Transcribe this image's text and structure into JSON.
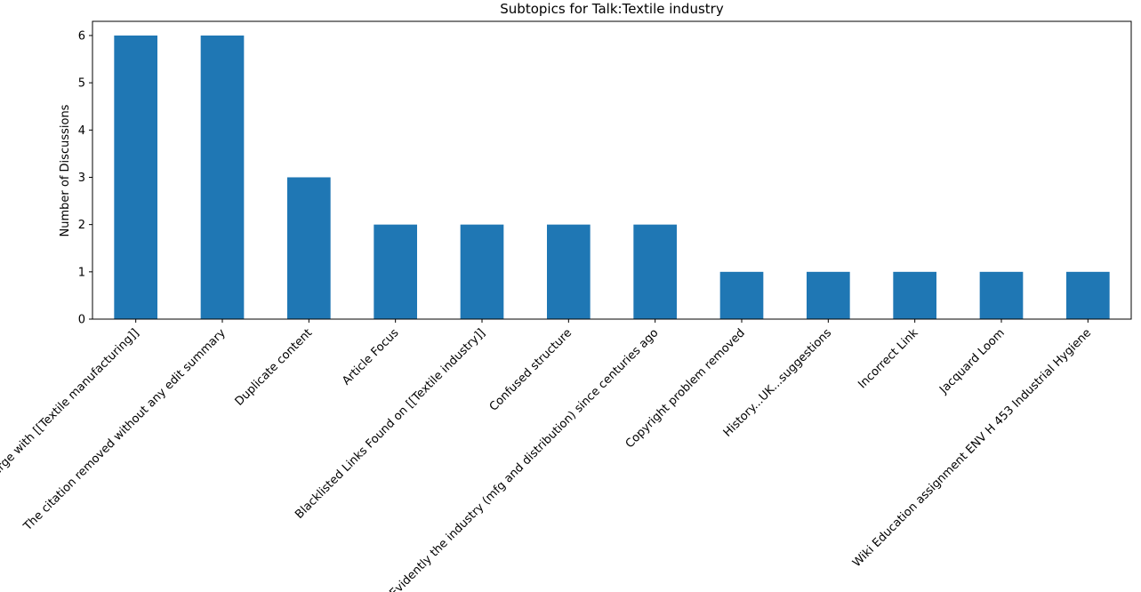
{
  "chart_data": {
    "type": "bar",
    "title": "Subtopics for Talk:Textile industry",
    "xlabel": "",
    "ylabel": "Number of Discussions",
    "ylim": [
      0,
      6.3
    ],
    "yticks": [
      0,
      1,
      2,
      3,
      4,
      5,
      6
    ],
    "grid": false,
    "legend": "none",
    "bar_color": "#1f77b4",
    "categories": [
      "Merge with [[Textile manufacturing]]",
      "The citation removed without any edit summary",
      "Duplicate content",
      "Article Focus",
      "Blacklisted Links Found on [[Textile industry]]",
      "Confused structure",
      "Evidently the industry (mfg and distribution) since centuries ago",
      "Copyright problem removed",
      "History...UK...suggestions",
      "Incorrect Link",
      "Jacquard Loom",
      "Wiki Education assignment ENV H 453 Industrial Hygiene"
    ],
    "values": [
      6,
      6,
      3,
      2,
      2,
      2,
      2,
      1,
      1,
      1,
      1,
      1
    ]
  }
}
